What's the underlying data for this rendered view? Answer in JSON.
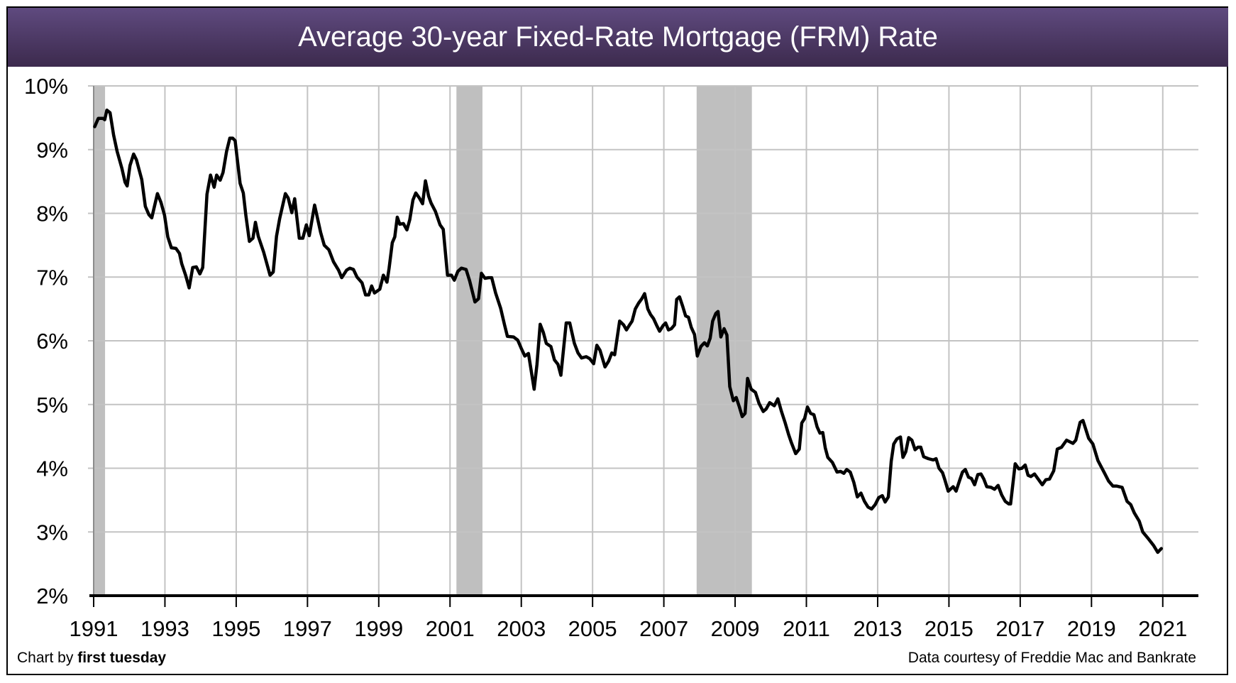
{
  "chart_data": {
    "type": "line",
    "title": "Average 30-year Fixed-Rate Mortgage (FRM) Rate",
    "xlabel": "",
    "ylabel": "",
    "xlim": [
      1991,
      2022
    ],
    "ylim": [
      2,
      10
    ],
    "x_ticks": [
      "1991",
      "1993",
      "1995",
      "1997",
      "1999",
      "2001",
      "2003",
      "2005",
      "2007",
      "2009",
      "2011",
      "2013",
      "2015",
      "2017",
      "2019",
      "2021"
    ],
    "y_ticks": [
      "2%",
      "3%",
      "4%",
      "5%",
      "6%",
      "7%",
      "8%",
      "9%",
      "10%"
    ],
    "grid": true,
    "legend": "none",
    "line_color": "#000000",
    "shaded_color": "#bfbfbf",
    "shaded_periods": [
      [
        1991.0,
        1991.32
      ],
      [
        2001.18,
        2001.91
      ],
      [
        2007.92,
        2009.47
      ]
    ],
    "points": [
      [
        1991.03,
        9.36
      ],
      [
        1991.13,
        9.49
      ],
      [
        1991.26,
        9.49
      ],
      [
        1991.31,
        9.47
      ],
      [
        1991.37,
        9.62
      ],
      [
        1991.46,
        9.58
      ],
      [
        1991.56,
        9.23
      ],
      [
        1991.66,
        8.97
      ],
      [
        1991.79,
        8.71
      ],
      [
        1991.88,
        8.49
      ],
      [
        1991.94,
        8.43
      ],
      [
        1992.02,
        8.75
      ],
      [
        1992.12,
        8.93
      ],
      [
        1992.2,
        8.84
      ],
      [
        1992.35,
        8.53
      ],
      [
        1992.45,
        8.11
      ],
      [
        1992.55,
        7.98
      ],
      [
        1992.63,
        7.93
      ],
      [
        1992.79,
        8.31
      ],
      [
        1992.89,
        8.17
      ],
      [
        1992.99,
        7.97
      ],
      [
        1993.08,
        7.63
      ],
      [
        1993.18,
        7.46
      ],
      [
        1993.31,
        7.45
      ],
      [
        1993.41,
        7.37
      ],
      [
        1993.47,
        7.21
      ],
      [
        1993.58,
        7.03
      ],
      [
        1993.68,
        6.83
      ],
      [
        1993.78,
        7.15
      ],
      [
        1993.88,
        7.16
      ],
      [
        1993.98,
        7.05
      ],
      [
        1994.06,
        7.15
      ],
      [
        1994.18,
        8.3
      ],
      [
        1994.28,
        8.6
      ],
      [
        1994.38,
        8.41
      ],
      [
        1994.45,
        8.6
      ],
      [
        1994.55,
        8.52
      ],
      [
        1994.63,
        8.64
      ],
      [
        1994.73,
        8.97
      ],
      [
        1994.82,
        9.18
      ],
      [
        1994.9,
        9.18
      ],
      [
        1994.97,
        9.14
      ],
      [
        1995.11,
        8.47
      ],
      [
        1995.2,
        8.32
      ],
      [
        1995.27,
        7.97
      ],
      [
        1995.37,
        7.56
      ],
      [
        1995.47,
        7.61
      ],
      [
        1995.54,
        7.86
      ],
      [
        1995.62,
        7.64
      ],
      [
        1995.77,
        7.39
      ],
      [
        1995.95,
        7.03
      ],
      [
        1996.04,
        7.08
      ],
      [
        1996.13,
        7.64
      ],
      [
        1996.22,
        7.92
      ],
      [
        1996.38,
        8.31
      ],
      [
        1996.46,
        8.24
      ],
      [
        1996.56,
        8.01
      ],
      [
        1996.64,
        8.23
      ],
      [
        1996.77,
        7.61
      ],
      [
        1996.87,
        7.61
      ],
      [
        1996.97,
        7.82
      ],
      [
        1997.05,
        7.65
      ],
      [
        1997.2,
        8.13
      ],
      [
        1997.37,
        7.7
      ],
      [
        1997.47,
        7.5
      ],
      [
        1997.6,
        7.43
      ],
      [
        1997.73,
        7.24
      ],
      [
        1997.87,
        7.11
      ],
      [
        1997.96,
        6.99
      ],
      [
        1998.1,
        7.11
      ],
      [
        1998.19,
        7.14
      ],
      [
        1998.29,
        7.12
      ],
      [
        1998.39,
        7.0
      ],
      [
        1998.53,
        6.91
      ],
      [
        1998.63,
        6.72
      ],
      [
        1998.72,
        6.72
      ],
      [
        1998.8,
        6.86
      ],
      [
        1998.88,
        6.75
      ],
      [
        1999.03,
        6.81
      ],
      [
        1999.13,
        7.03
      ],
      [
        1999.23,
        6.92
      ],
      [
        1999.29,
        7.14
      ],
      [
        1999.38,
        7.54
      ],
      [
        1999.45,
        7.63
      ],
      [
        1999.52,
        7.94
      ],
      [
        1999.59,
        7.83
      ],
      [
        1999.69,
        7.84
      ],
      [
        1999.79,
        7.74
      ],
      [
        1999.87,
        7.9
      ],
      [
        1999.96,
        8.21
      ],
      [
        2000.04,
        8.32
      ],
      [
        2000.14,
        8.24
      ],
      [
        2000.23,
        8.15
      ],
      [
        2000.31,
        8.51
      ],
      [
        2000.4,
        8.27
      ],
      [
        2000.47,
        8.16
      ],
      [
        2000.59,
        8.03
      ],
      [
        2000.72,
        7.82
      ],
      [
        2000.81,
        7.75
      ],
      [
        2000.93,
        7.03
      ],
      [
        2001.04,
        7.03
      ],
      [
        2001.12,
        6.95
      ],
      [
        2001.22,
        7.09
      ],
      [
        2001.32,
        7.14
      ],
      [
        2001.45,
        7.12
      ],
      [
        2001.55,
        6.94
      ],
      [
        2001.7,
        6.61
      ],
      [
        2001.8,
        6.66
      ],
      [
        2001.88,
        7.06
      ],
      [
        2001.98,
        6.98
      ],
      [
        2002.08,
        6.99
      ],
      [
        2002.17,
        6.99
      ],
      [
        2002.28,
        6.75
      ],
      [
        2002.42,
        6.51
      ],
      [
        2002.53,
        6.25
      ],
      [
        2002.61,
        6.07
      ],
      [
        2002.78,
        6.06
      ],
      [
        2002.9,
        6.01
      ],
      [
        2003.0,
        5.88
      ],
      [
        2003.1,
        5.76
      ],
      [
        2003.2,
        5.8
      ],
      [
        2003.36,
        5.24
      ],
      [
        2003.44,
        5.63
      ],
      [
        2003.53,
        6.26
      ],
      [
        2003.62,
        6.13
      ],
      [
        2003.7,
        5.96
      ],
      [
        2003.83,
        5.91
      ],
      [
        2003.93,
        5.7
      ],
      [
        2004.03,
        5.63
      ],
      [
        2004.11,
        5.46
      ],
      [
        2004.26,
        6.28
      ],
      [
        2004.36,
        6.28
      ],
      [
        2004.49,
        5.96
      ],
      [
        2004.59,
        5.81
      ],
      [
        2004.69,
        5.73
      ],
      [
        2004.82,
        5.75
      ],
      [
        2004.92,
        5.72
      ],
      [
        2005.03,
        5.64
      ],
      [
        2005.12,
        5.93
      ],
      [
        2005.21,
        5.85
      ],
      [
        2005.35,
        5.59
      ],
      [
        2005.45,
        5.68
      ],
      [
        2005.54,
        5.81
      ],
      [
        2005.62,
        5.78
      ],
      [
        2005.76,
        6.31
      ],
      [
        2005.87,
        6.25
      ],
      [
        2005.95,
        6.17
      ],
      [
        2006.05,
        6.26
      ],
      [
        2006.11,
        6.31
      ],
      [
        2006.2,
        6.5
      ],
      [
        2006.29,
        6.59
      ],
      [
        2006.38,
        6.66
      ],
      [
        2006.46,
        6.74
      ],
      [
        2006.55,
        6.5
      ],
      [
        2006.63,
        6.41
      ],
      [
        2006.71,
        6.35
      ],
      [
        2006.8,
        6.24
      ],
      [
        2006.88,
        6.15
      ],
      [
        2006.98,
        6.24
      ],
      [
        2007.05,
        6.28
      ],
      [
        2007.13,
        6.17
      ],
      [
        2007.21,
        6.19
      ],
      [
        2007.3,
        6.25
      ],
      [
        2007.36,
        6.65
      ],
      [
        2007.44,
        6.69
      ],
      [
        2007.53,
        6.54
      ],
      [
        2007.61,
        6.39
      ],
      [
        2007.69,
        6.37
      ],
      [
        2007.77,
        6.21
      ],
      [
        2007.86,
        6.1
      ],
      [
        2007.94,
        5.76
      ],
      [
        2008.04,
        5.91
      ],
      [
        2008.14,
        5.97
      ],
      [
        2008.22,
        5.92
      ],
      [
        2008.3,
        6.04
      ],
      [
        2008.37,
        6.31
      ],
      [
        2008.46,
        6.43
      ],
      [
        2008.52,
        6.46
      ],
      [
        2008.6,
        6.06
      ],
      [
        2008.69,
        6.19
      ],
      [
        2008.77,
        6.09
      ],
      [
        2008.85,
        5.28
      ],
      [
        2008.95,
        5.06
      ],
      [
        2009.03,
        5.11
      ],
      [
        2009.12,
        4.96
      ],
      [
        2009.2,
        4.81
      ],
      [
        2009.28,
        4.86
      ],
      [
        2009.35,
        5.41
      ],
      [
        2009.45,
        5.24
      ],
      [
        2009.57,
        5.19
      ],
      [
        2009.67,
        5.02
      ],
      [
        2009.79,
        4.89
      ],
      [
        2009.87,
        4.93
      ],
      [
        2009.97,
        5.03
      ],
      [
        2010.1,
        4.98
      ],
      [
        2010.2,
        5.09
      ],
      [
        2010.3,
        4.89
      ],
      [
        2010.4,
        4.72
      ],
      [
        2010.5,
        4.53
      ],
      [
        2010.58,
        4.4
      ],
      [
        2010.7,
        4.23
      ],
      [
        2010.8,
        4.3
      ],
      [
        2010.87,
        4.71
      ],
      [
        2010.95,
        4.78
      ],
      [
        2011.03,
        4.96
      ],
      [
        2011.12,
        4.86
      ],
      [
        2011.21,
        4.84
      ],
      [
        2011.3,
        4.65
      ],
      [
        2011.38,
        4.55
      ],
      [
        2011.46,
        4.56
      ],
      [
        2011.53,
        4.32
      ],
      [
        2011.6,
        4.17
      ],
      [
        2011.73,
        4.09
      ],
      [
        2011.86,
        3.94
      ],
      [
        2011.96,
        3.95
      ],
      [
        2012.05,
        3.92
      ],
      [
        2012.13,
        3.98
      ],
      [
        2012.23,
        3.94
      ],
      [
        2012.33,
        3.78
      ],
      [
        2012.43,
        3.55
      ],
      [
        2012.53,
        3.61
      ],
      [
        2012.63,
        3.48
      ],
      [
        2012.73,
        3.39
      ],
      [
        2012.83,
        3.36
      ],
      [
        2012.93,
        3.43
      ],
      [
        2013.03,
        3.54
      ],
      [
        2013.13,
        3.57
      ],
      [
        2013.21,
        3.47
      ],
      [
        2013.3,
        3.55
      ],
      [
        2013.38,
        4.11
      ],
      [
        2013.45,
        4.38
      ],
      [
        2013.54,
        4.46
      ],
      [
        2013.64,
        4.49
      ],
      [
        2013.71,
        4.17
      ],
      [
        2013.79,
        4.26
      ],
      [
        2013.87,
        4.48
      ],
      [
        2013.96,
        4.44
      ],
      [
        2014.05,
        4.29
      ],
      [
        2014.13,
        4.33
      ],
      [
        2014.21,
        4.33
      ],
      [
        2014.29,
        4.18
      ],
      [
        2014.42,
        4.15
      ],
      [
        2014.56,
        4.13
      ],
      [
        2014.64,
        4.15
      ],
      [
        2014.72,
        4.0
      ],
      [
        2014.82,
        3.93
      ],
      [
        2014.89,
        3.81
      ],
      [
        2014.98,
        3.64
      ],
      [
        2015.12,
        3.71
      ],
      [
        2015.2,
        3.64
      ],
      [
        2015.3,
        3.81
      ],
      [
        2015.38,
        3.94
      ],
      [
        2015.46,
        3.98
      ],
      [
        2015.55,
        3.86
      ],
      [
        2015.63,
        3.84
      ],
      [
        2015.72,
        3.74
      ],
      [
        2015.81,
        3.9
      ],
      [
        2015.9,
        3.91
      ],
      [
        2015.98,
        3.83
      ],
      [
        2016.06,
        3.71
      ],
      [
        2016.18,
        3.7
      ],
      [
        2016.28,
        3.67
      ],
      [
        2016.38,
        3.73
      ],
      [
        2016.48,
        3.58
      ],
      [
        2016.58,
        3.48
      ],
      [
        2016.68,
        3.44
      ],
      [
        2016.73,
        3.44
      ],
      [
        2016.86,
        4.07
      ],
      [
        2016.96,
        3.99
      ],
      [
        2017.05,
        4.0
      ],
      [
        2017.14,
        4.05
      ],
      [
        2017.22,
        3.89
      ],
      [
        2017.3,
        3.87
      ],
      [
        2017.4,
        3.91
      ],
      [
        2017.62,
        3.74
      ],
      [
        2017.72,
        3.82
      ],
      [
        2017.82,
        3.83
      ],
      [
        2017.94,
        3.96
      ],
      [
        2018.04,
        4.3
      ],
      [
        2018.16,
        4.33
      ],
      [
        2018.3,
        4.44
      ],
      [
        2018.48,
        4.39
      ],
      [
        2018.56,
        4.44
      ],
      [
        2018.68,
        4.72
      ],
      [
        2018.76,
        4.75
      ],
      [
        2018.92,
        4.47
      ],
      [
        2019.04,
        4.38
      ],
      [
        2019.18,
        4.12
      ],
      [
        2019.36,
        3.93
      ],
      [
        2019.48,
        3.8
      ],
      [
        2019.6,
        3.72
      ],
      [
        2019.7,
        3.72
      ],
      [
        2019.86,
        3.7
      ],
      [
        2020.0,
        3.48
      ],
      [
        2020.1,
        3.43
      ],
      [
        2020.2,
        3.3
      ],
      [
        2020.34,
        3.17
      ],
      [
        2020.44,
        3.0
      ],
      [
        2020.6,
        2.89
      ],
      [
        2020.74,
        2.79
      ],
      [
        2020.86,
        2.68
      ],
      [
        2020.96,
        2.74
      ]
    ]
  },
  "footer": {
    "credit_prefix": "Chart by ",
    "credit_brand": "first tuesday",
    "source": "Data courtesy of Freddie Mac and Bankrate"
  }
}
